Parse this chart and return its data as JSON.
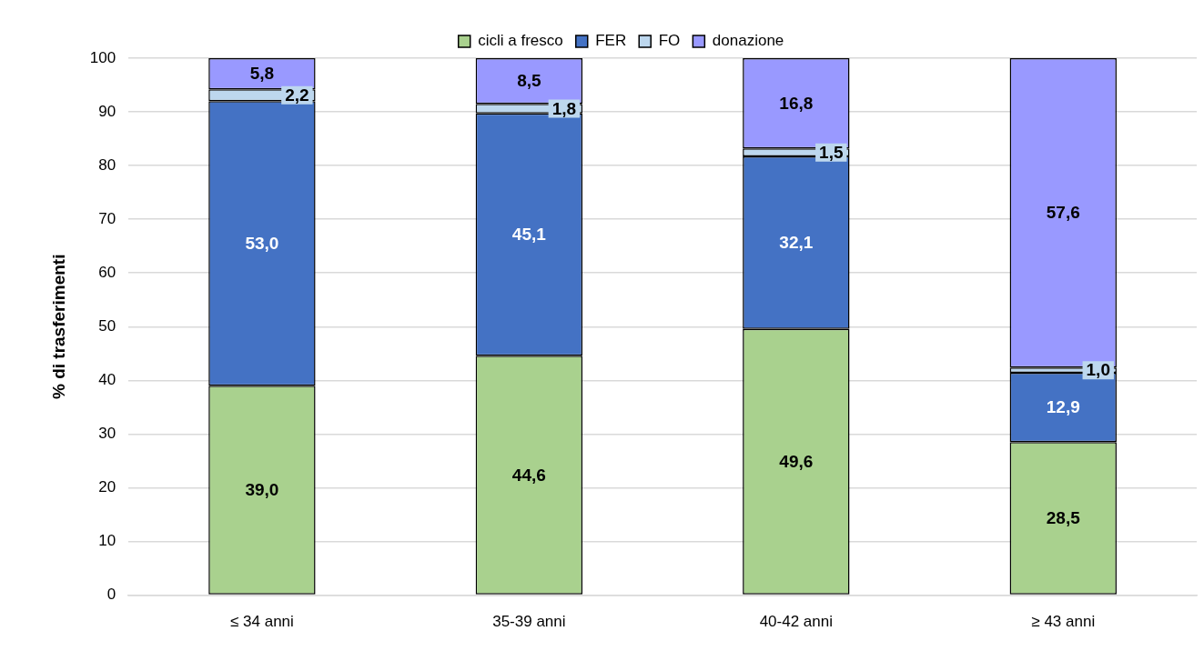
{
  "chart_data": {
    "type": "bar",
    "stacked": true,
    "ylabel": "% di trasferimenti",
    "categories": [
      "≤ 34 anni",
      "35-39 anni",
      "40-42 anni",
      "≥ 43 anni"
    ],
    "series": [
      {
        "name": "cicli a fresco",
        "color": "#a9d18e",
        "values": [
          39.0,
          44.6,
          49.6,
          28.5
        ],
        "value_labels": [
          "39,0",
          "44,6",
          "49,6",
          "28,5"
        ]
      },
      {
        "name": "FER",
        "color": "#4472c4",
        "values": [
          53.0,
          45.1,
          32.1,
          12.9
        ],
        "value_labels": [
          "53,0",
          "45,1",
          "32,1",
          "12,9"
        ]
      },
      {
        "name": "FO",
        "color": "#bdd7ee",
        "values": [
          2.2,
          1.8,
          1.5,
          1.0
        ],
        "value_labels": [
          "2,2",
          "1,8",
          "1,5",
          "1,0"
        ]
      },
      {
        "name": "donazione",
        "color": "#9999ff",
        "values": [
          5.8,
          8.5,
          16.8,
          57.6
        ],
        "value_labels": [
          "5,8",
          "8,5",
          "16,8",
          "57,6"
        ]
      }
    ],
    "ylim": [
      0,
      100
    ],
    "yticks": [
      0,
      10,
      20,
      30,
      40,
      50,
      60,
      70,
      80,
      90,
      100
    ],
    "grid": "y",
    "legend": "top"
  }
}
